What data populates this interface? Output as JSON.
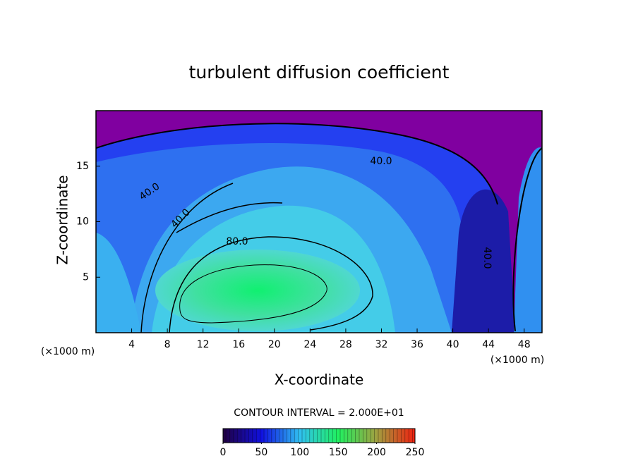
{
  "chart_data": {
    "type": "contour",
    "title": "turbulent diffusion coefficient",
    "x_label": "X-coordinate",
    "y_label": "Z-coordinate",
    "x_unit_labels": [
      "(×1000 m)",
      "(×1000 m)"
    ],
    "xlim": [
      0,
      50
    ],
    "xticks": [
      4,
      8,
      12,
      16,
      20,
      24,
      28,
      32,
      36,
      40,
      44,
      48
    ],
    "ylim": [
      0,
      20
    ],
    "yticks": [
      5,
      10,
      15
    ],
    "contour_levels": [
      {
        "value": 40,
        "label": "40.0"
      },
      {
        "value": 80,
        "label": "80.0"
      }
    ],
    "contour_interval_label": "CONTOUR INTERVAL = 2.000E+01",
    "colorbar": {
      "lim": [
        0,
        250
      ],
      "ticks": [
        0,
        50,
        100,
        150,
        200,
        250
      ],
      "colors": [
        "#200040",
        "#1010e0",
        "#30c0f0",
        "#20f060",
        "#a0a040",
        "#f02010"
      ]
    }
  }
}
